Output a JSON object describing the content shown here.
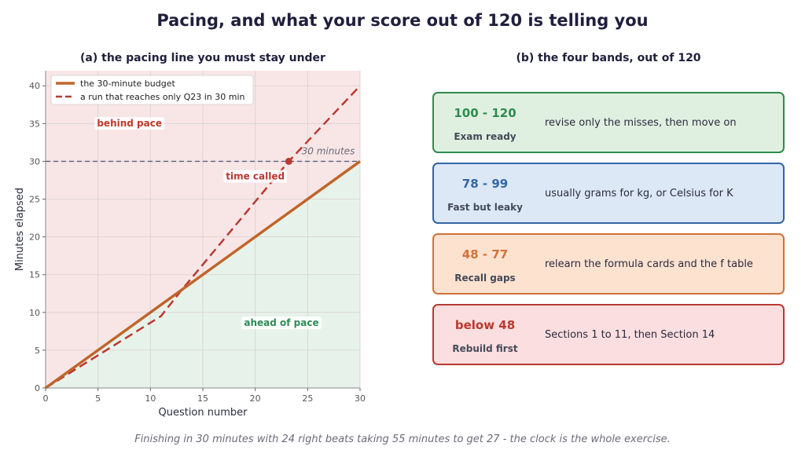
{
  "title": "Pacing, and what your score out of 120 is telling you",
  "footer": "Finishing in 30 minutes with 24 right beats taking 55 minutes to get 27 - the clock is the whole exercise.",
  "chart_data": {
    "type": "line",
    "title": "(a) the pacing line you must stay under",
    "xlabel": "Question number",
    "ylabel": "Minutes elapsed",
    "xlim": [
      0,
      30
    ],
    "ylim": [
      0,
      42
    ],
    "xticks": [
      0,
      5,
      10,
      15,
      20,
      25,
      30
    ],
    "yticks": [
      0,
      5,
      10,
      15,
      20,
      25,
      30,
      35,
      40
    ],
    "grid": true,
    "legend_position": "top-left",
    "series": [
      {
        "name": "the 30-minute budget",
        "style": "solid",
        "color": "#c0652a",
        "x": [
          0,
          30
        ],
        "y": [
          0,
          30
        ]
      },
      {
        "name": "a run that reaches only Q23 in 30 min",
        "style": "dashed",
        "color": "#b83a32",
        "x": [
          0,
          11,
          13,
          23.2,
          30
        ],
        "y": [
          0,
          9.5,
          13,
          30,
          40
        ]
      }
    ],
    "reference_line": {
      "y": 30,
      "label": "30 minutes",
      "color": "#5e5e7e"
    },
    "marker": {
      "x": 23.2,
      "y": 30,
      "label": "time called",
      "color": "#b83a32"
    },
    "regions": [
      {
        "label": "behind pace",
        "color": "#c0392b",
        "fill": "#f8e6e6"
      },
      {
        "label": "ahead of pace",
        "color": "#2e8b57",
        "fill": "#e7f3ea"
      }
    ]
  },
  "bands_panel": {
    "title": "(b) the four bands, out of 120",
    "bands": [
      {
        "range": "100 - 120",
        "label": "Exam ready",
        "desc": "revise only the misses, then move on",
        "color": "#2e8b4e",
        "bg": "#e0f0e0"
      },
      {
        "range": "78 - 99",
        "label": "Fast but leaky",
        "desc": "usually grams for kg, or Celsius for K",
        "color": "#3465a4",
        "bg": "#dce8f6"
      },
      {
        "range": "48 - 77",
        "label": "Recall gaps",
        "desc": "relearn the formula cards and the f table",
        "color": "#d0733a",
        "bg": "#fde2d0"
      },
      {
        "range": "below 48",
        "label": "Rebuild first",
        "desc": "Sections 1 to 11, then Section 14",
        "color": "#b83a32",
        "bg": "#fbdedf"
      }
    ]
  }
}
